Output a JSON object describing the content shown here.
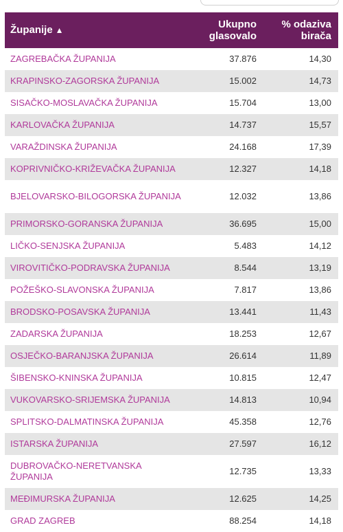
{
  "table": {
    "headers": {
      "name": "Županije",
      "name_sort_icon": "triangle-up-icon",
      "total_line1": "Ukupno",
      "total_line2": "glasovalo",
      "turnout_line1": "% odaziva",
      "turnout_line2": "birača"
    },
    "rows": [
      {
        "name": "ZAGREBAČKA ŽUPANIJA",
        "total": "37.876",
        "turnout": "14,30"
      },
      {
        "name": "KRAPINSKO-ZAGORSKA ŽUPANIJA",
        "total": "15.002",
        "turnout": "14,73"
      },
      {
        "name": "SISAČKO-MOSLAVAČKA ŽUPANIJA",
        "total": "15.704",
        "turnout": "13,00"
      },
      {
        "name": "KARLOVAČKA ŽUPANIJA",
        "total": "14.737",
        "turnout": "15,57"
      },
      {
        "name": "VARAŽDINSKA ŽUPANIJA",
        "total": "24.168",
        "turnout": "17,39"
      },
      {
        "name": "KOPRIVNIČKO-KRIŽEVAČKA ŽUPANIJA",
        "total": "12.327",
        "turnout": "14,18"
      },
      {
        "name": "BJELOVARSKO-BILOGORSKA ŽUPANIJA",
        "total": "12.032",
        "turnout": "13,86"
      },
      {
        "name": "PRIMORSKO-GORANSKA ŽUPANIJA",
        "total": "36.695",
        "turnout": "15,00"
      },
      {
        "name": "LIČKO-SENJSKA ŽUPANIJA",
        "total": "5.483",
        "turnout": "14,12"
      },
      {
        "name": "VIROVITIČKO-PODRAVSKA ŽUPANIJA",
        "total": "8.544",
        "turnout": "13,19"
      },
      {
        "name": "POŽEŠKO-SLAVONSKA ŽUPANIJA",
        "total": "7.817",
        "turnout": "13,86"
      },
      {
        "name": "BRODSKO-POSAVSKA ŽUPANIJA",
        "total": "13.441",
        "turnout": "11,43"
      },
      {
        "name": "ZADARSKA ŽUPANIJA",
        "total": "18.253",
        "turnout": "12,67"
      },
      {
        "name": "OSJEČKO-BARANJSKA ŽUPANIJA",
        "total": "26.614",
        "turnout": "11,89"
      },
      {
        "name": "ŠIBENSKO-KNINSKA ŽUPANIJA",
        "total": "10.815",
        "turnout": "12,47"
      },
      {
        "name": "VUKOVARSKO-SRIJEMSKA ŽUPANIJA",
        "total": "14.813",
        "turnout": "10,94"
      },
      {
        "name": "SPLITSKO-DALMATINSKA ŽUPANIJA",
        "total": "45.358",
        "turnout": "12,76"
      },
      {
        "name": "ISTARSKA ŽUPANIJA",
        "total": "27.597",
        "turnout": "16,12"
      },
      {
        "name": "DUBROVAČKO-NERETVANSKA ŽUPANIJA",
        "total": "12.735",
        "turnout": "13,33"
      },
      {
        "name": "MEĐIMURSKA ŽUPANIJA",
        "total": "12.625",
        "turnout": "14,25"
      },
      {
        "name": "GRAD ZAGREB",
        "total": "88.254",
        "turnout": "14,18"
      }
    ]
  },
  "colors": {
    "header_bg": "#6b1f5e",
    "link": "#b0399a",
    "row_alt": "#e5e5e5"
  }
}
